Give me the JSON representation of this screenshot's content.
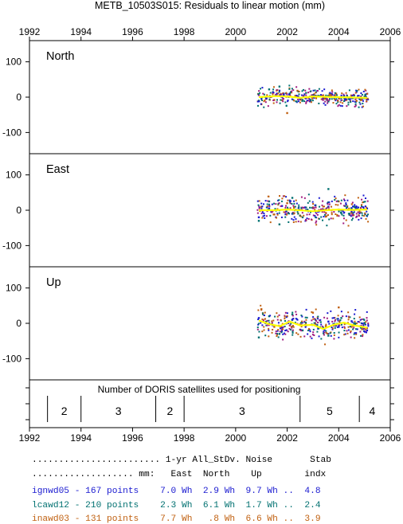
{
  "chart_data": {
    "type": "scatter",
    "title": "METB_10503S015: Residuals to linear motion (mm)",
    "xlim": [
      1992,
      2006
    ],
    "x_ticks": [
      1992,
      1994,
      1996,
      1998,
      2000,
      2002,
      2004,
      2006
    ],
    "x_tick_labels": [
      "1992",
      "1994",
      "1996",
      "1998",
      "2000",
      "2002",
      "2004",
      "2006"
    ],
    "ylim": [
      -160,
      160
    ],
    "y_ticks": [
      100,
      0,
      -100
    ],
    "y_tick_labels": [
      "100",
      "0",
      "-100"
    ],
    "grid": false,
    "colors": {
      "ignwd05": "#1a1ad0",
      "lcawd12": "#007070",
      "inawd03": "#c06010",
      "extra": "#a01a80",
      "fit": "#ffff00"
    },
    "panels": [
      {
        "label": "North",
        "spread": 12,
        "series": [
          {
            "name": "ignwd05",
            "points": [
              [
                2000.9,
                6
              ],
              [
                2001.2,
                -4
              ],
              [
                2001.6,
                10
              ],
              [
                2002.0,
                3
              ],
              [
                2002.5,
                -6
              ],
              [
                2003.0,
                5
              ],
              [
                2003.5,
                -3
              ],
              [
                2004.0,
                -2
              ],
              [
                2004.4,
                -1
              ],
              [
                2004.8,
                -4
              ],
              [
                2005.1,
                -6
              ]
            ]
          },
          {
            "name": "lcawd12",
            "points": [
              [
                2000.9,
                -10
              ],
              [
                2001.3,
                22
              ],
              [
                2001.7,
                30
              ],
              [
                2002.1,
                10
              ],
              [
                2002.6,
                -8
              ],
              [
                2003.1,
                4
              ],
              [
                2003.6,
                -12
              ],
              [
                2004.1,
                -2
              ],
              [
                2004.6,
                5
              ]
            ]
          },
          {
            "name": "inawd03",
            "points": [
              [
                2001.0,
                -20
              ],
              [
                2001.5,
                -8
              ],
              [
                2002.0,
                -45
              ],
              [
                2002.4,
                18
              ],
              [
                2002.9,
                -10
              ],
              [
                2003.4,
                5
              ],
              [
                2003.9,
                10
              ],
              [
                2004.3,
                -8
              ]
            ]
          }
        ],
        "trend": [
          [
            2000.9,
            0
          ],
          [
            2001.5,
            3
          ],
          [
            2002.0,
            2
          ],
          [
            2002.5,
            -2
          ],
          [
            2003.0,
            2
          ],
          [
            2003.5,
            1
          ],
          [
            2004.0,
            0
          ],
          [
            2004.5,
            -1
          ],
          [
            2005.1,
            -2
          ]
        ]
      },
      {
        "label": "East",
        "spread": 18,
        "series": [
          {
            "name": "ignwd05",
            "points": [
              [
                2000.9,
                -20
              ],
              [
                2001.3,
                5
              ],
              [
                2001.8,
                12
              ],
              [
                2002.2,
                -10
              ],
              [
                2002.7,
                8
              ],
              [
                2003.2,
                -4
              ],
              [
                2003.6,
                10
              ],
              [
                2004.0,
                2
              ],
              [
                2004.5,
                6
              ],
              [
                2005.1,
                5
              ]
            ]
          },
          {
            "name": "lcawd12",
            "points": [
              [
                2000.9,
                -30
              ],
              [
                2001.3,
                25
              ],
              [
                2001.7,
                -40
              ],
              [
                2002.2,
                35
              ],
              [
                2002.6,
                -20
              ],
              [
                2003.1,
                14
              ],
              [
                2003.6,
                60
              ],
              [
                2004.1,
                -8
              ],
              [
                2004.6,
                10
              ]
            ]
          },
          {
            "name": "inawd03",
            "points": [
              [
                2001.0,
                10
              ],
              [
                2001.5,
                -12
              ],
              [
                2002.0,
                20
              ],
              [
                2002.5,
                -15
              ],
              [
                2003.0,
                8
              ],
              [
                2003.5,
                -18
              ],
              [
                2004.0,
                25
              ],
              [
                2004.5,
                -5
              ]
            ]
          }
        ],
        "trend": [
          [
            2000.9,
            0
          ],
          [
            2001.5,
            0
          ],
          [
            2002.0,
            2
          ],
          [
            2002.5,
            0
          ],
          [
            2003.0,
            -3
          ],
          [
            2003.5,
            0
          ],
          [
            2004.0,
            2
          ],
          [
            2004.5,
            1
          ],
          [
            2005.1,
            2
          ]
        ]
      },
      {
        "label": "Up",
        "spread": 18,
        "series": [
          {
            "name": "ignwd05",
            "points": [
              [
                2000.9,
                15
              ],
              [
                2001.3,
                0
              ],
              [
                2001.8,
                -12
              ],
              [
                2002.2,
                10
              ],
              [
                2002.7,
                -5
              ],
              [
                2003.2,
                -15
              ],
              [
                2003.6,
                5
              ],
              [
                2004.0,
                -10
              ],
              [
                2004.5,
                6
              ],
              [
                2005.1,
                -20
              ]
            ]
          },
          {
            "name": "lcawd12",
            "points": [
              [
                2000.9,
                -40
              ],
              [
                2001.3,
                20
              ],
              [
                2001.7,
                -30
              ],
              [
                2002.2,
                25
              ],
              [
                2002.6,
                -20
              ],
              [
                2003.1,
                10
              ],
              [
                2003.6,
                -35
              ],
              [
                2004.1,
                15
              ],
              [
                2004.6,
                0
              ]
            ]
          },
          {
            "name": "inawd03",
            "points": [
              [
                2001.0,
                40
              ],
              [
                2001.5,
                -10
              ],
              [
                2002.0,
                20
              ],
              [
                2002.5,
                -18
              ],
              [
                2003.0,
                30
              ],
              [
                2003.5,
                -8
              ],
              [
                2004.0,
                45
              ],
              [
                2004.5,
                -10
              ]
            ]
          }
        ],
        "trend": [
          [
            2000.9,
            8
          ],
          [
            2001.3,
            -2
          ],
          [
            2001.7,
            -8
          ],
          [
            2002.1,
            5
          ],
          [
            2002.5,
            -6
          ],
          [
            2003.0,
            -4
          ],
          [
            2003.4,
            -16
          ],
          [
            2003.8,
            -4
          ],
          [
            2004.2,
            2
          ],
          [
            2004.6,
            -6
          ],
          [
            2005.1,
            -12
          ]
        ]
      }
    ],
    "satellites": {
      "caption": "Number of DORIS satellites used for positioning",
      "boundaries": [
        1992.7,
        1994.0,
        1996.9,
        1998.0,
        2002.5,
        2004.8
      ],
      "segments": [
        {
          "label": "2",
          "x": 1993.35
        },
        {
          "label": "3",
          "x": 1995.45
        },
        {
          "label": "2",
          "x": 1997.45
        },
        {
          "label": "3",
          "x": 2000.25
        },
        {
          "label": "5",
          "x": 2003.65
        },
        {
          "label": "4",
          "x": 2005.3
        }
      ]
    }
  },
  "stats": {
    "header1": "........................ 1-yr All_StDv. Noise       Stab",
    "header2": "................... mm:   East  North    Up        indx",
    "rows": [
      {
        "name": "ignwd05",
        "text": "ignwd05 - 167 points    7.0 Wh  2.9 Wh  9.7 Wh ..  4.8",
        "color": "#1a1ad0"
      },
      {
        "name": "lcawd12",
        "text": "lcawd12 - 210 points    2.3 Wh  6.1 Wh  1.7 Wh ..  2.4",
        "color": "#007070"
      },
      {
        "name": "inawd03",
        "text": "inawd03 - 131 points    7.7 Wh   .8 Wh  6.6 Wh ..  3.9",
        "color": "#c06010"
      }
    ]
  }
}
